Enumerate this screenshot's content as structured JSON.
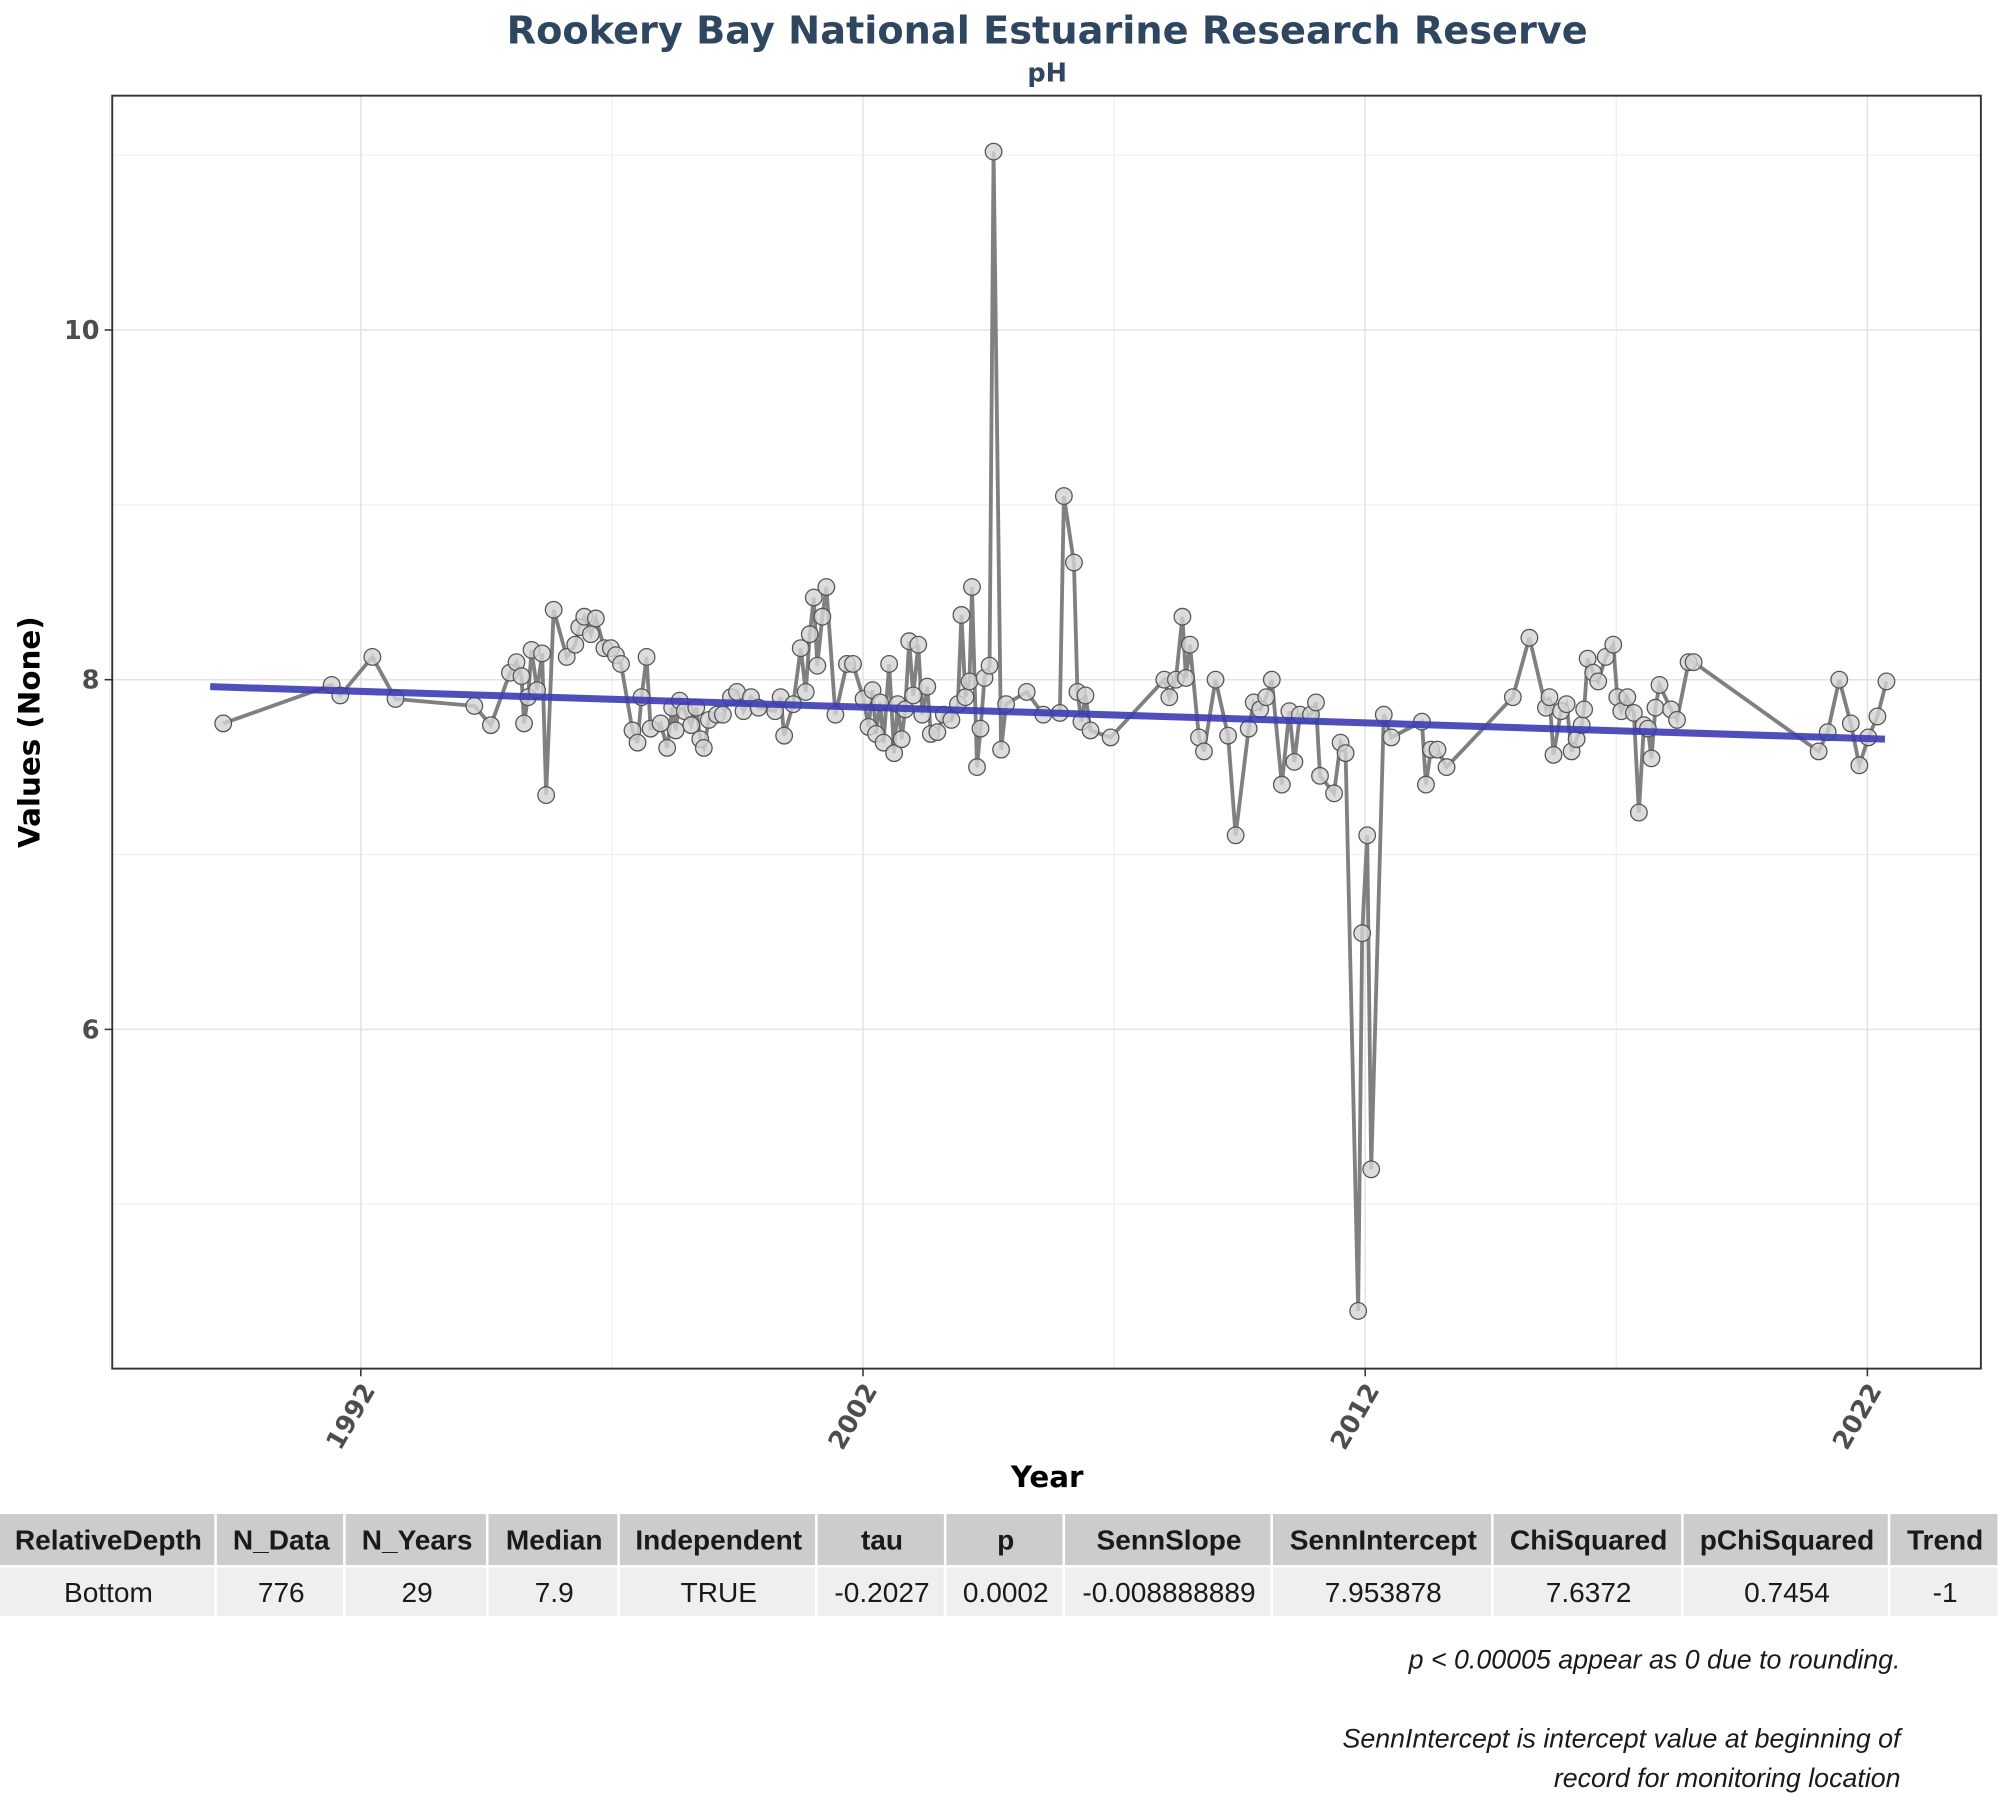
{
  "chart_data": {
    "type": "line",
    "title": "Rookery Bay National Estuarine Research Reserve",
    "subtitle": "pH",
    "x_label": "Year",
    "y_label": "Values (None)",
    "xlim": [
      1987.05,
      2024.26
    ],
    "ylim": [
      4.06,
      11.34
    ],
    "xticks": [
      1992,
      2002,
      2012,
      2022
    ],
    "yticks": [
      6,
      8,
      10
    ],
    "x_minor_ticks": [
      1987,
      1997,
      2007,
      2017
    ],
    "y_minor_ticks": [
      5,
      7,
      9,
      11
    ],
    "grid": true,
    "color": "#808080",
    "x": [
      1989.26,
      1991.42,
      1991.59,
      1992.23,
      1992.69,
      1994.26,
      1994.59,
      1994.97,
      1995.1,
      1995.2,
      1995.25,
      1995.33,
      1995.4,
      1995.51,
      1995.61,
      1995.69,
      1995.84,
      1996.1,
      1996.27,
      1996.35,
      1996.45,
      1996.58,
      1996.68,
      1996.85,
      1996.98,
      1997.08,
      1997.18,
      1997.41,
      1997.51,
      1997.59,
      1997.69,
      1997.77,
      1997.97,
      1998.1,
      1998.2,
      1998.27,
      1998.35,
      1998.45,
      1998.58,
      1998.68,
      1998.76,
      1998.83,
      1998.93,
      1999.09,
      1999.21,
      1999.37,
      1999.49,
      1999.62,
      1999.77,
      1999.92,
      2000.25,
      2000.36,
      2000.43,
      2000.61,
      2000.76,
      2000.86,
      2000.94,
      2001.02,
      2001.09,
      2001.19,
      2001.27,
      2001.45,
      2001.68,
      2001.8,
      2002.01,
      2002.11,
      2002.19,
      2002.26,
      2002.34,
      2002.41,
      2002.52,
      2002.62,
      2002.69,
      2002.77,
      2002.84,
      2002.92,
      2003.0,
      2003.1,
      2003.18,
      2003.28,
      2003.35,
      2003.48,
      2003.61,
      2003.76,
      2003.89,
      2003.96,
      2004.04,
      2004.12,
      2004.17,
      2004.27,
      2004.34,
      2004.42,
      2004.52,
      2004.6,
      2004.75,
      2004.85,
      2005.26,
      2005.59,
      2005.92,
      2006.0,
      2006.2,
      2006.27,
      2006.35,
      2006.43,
      2006.53,
      2006.93,
      2008.0,
      2008.1,
      2008.23,
      2008.36,
      2008.43,
      2008.51,
      2008.69,
      2008.79,
      2009.02,
      2009.27,
      2009.42,
      2009.68,
      2009.78,
      2009.91,
      2010.03,
      2010.14,
      2010.34,
      2010.49,
      2010.59,
      2010.7,
      2010.92,
      2011.02,
      2011.1,
      2011.38,
      2011.51,
      2011.61,
      2011.86,
      2011.94,
      2012.04,
      2012.12,
      2012.37,
      2012.52,
      2013.13,
      2013.21,
      2013.31,
      2013.44,
      2013.62,
      2014.94,
      2015.27,
      2015.6,
      2015.67,
      2015.75,
      2015.9,
      2016.01,
      2016.11,
      2016.21,
      2016.31,
      2016.36,
      2016.43,
      2016.54,
      2016.64,
      2016.79,
      2016.94,
      2017.02,
      2017.1,
      2017.22,
      2017.35,
      2017.45,
      2017.55,
      2017.63,
      2017.7,
      2017.78,
      2017.86,
      2018.09,
      2018.21,
      2018.44,
      2018.54,
      2021.03,
      2021.21,
      2021.44,
      2021.67,
      2021.84,
      2022.02,
      2022.2,
      2022.38
    ],
    "values": [
      7.75,
      7.97,
      7.91,
      8.13,
      7.89,
      7.85,
      7.74,
      8.04,
      8.1,
      8.02,
      7.75,
      7.9,
      8.17,
      7.94,
      8.15,
      7.34,
      8.4,
      8.13,
      8.2,
      8.3,
      8.36,
      8.26,
      8.35,
      8.18,
      8.18,
      8.14,
      8.09,
      7.71,
      7.64,
      7.9,
      8.13,
      7.72,
      7.75,
      7.61,
      7.84,
      7.71,
      7.88,
      7.82,
      7.74,
      7.84,
      7.66,
      7.61,
      7.77,
      7.8,
      7.8,
      7.9,
      7.93,
      7.82,
      7.9,
      7.84,
      7.82,
      7.9,
      7.68,
      7.86,
      8.18,
      7.93,
      8.26,
      8.47,
      8.08,
      8.36,
      8.53,
      7.8,
      8.09,
      8.09,
      7.89,
      7.73,
      7.94,
      7.69,
      7.87,
      7.64,
      8.09,
      7.58,
      7.86,
      7.66,
      7.83,
      8.22,
      7.91,
      8.2,
      7.8,
      7.96,
      7.69,
      7.7,
      7.8,
      7.77,
      7.86,
      8.37,
      7.9,
      7.99,
      8.53,
      7.5,
      7.72,
      8.01,
      8.08,
      11.02,
      7.6,
      7.86,
      7.93,
      7.8,
      7.81,
      9.05,
      8.67,
      7.93,
      7.76,
      7.91,
      7.71,
      7.67,
      8.0,
      7.9,
      8.0,
      8.36,
      8.01,
      8.2,
      7.67,
      7.59,
      8.0,
      7.68,
      7.11,
      7.72,
      7.87,
      7.83,
      7.9,
      8.0,
      7.4,
      7.82,
      7.53,
      7.8,
      7.8,
      7.87,
      7.45,
      7.35,
      7.64,
      7.58,
      4.39,
      6.55,
      7.11,
      5.2,
      7.8,
      7.67,
      7.76,
      7.4,
      7.6,
      7.6,
      7.5,
      7.9,
      8.24,
      7.84,
      7.9,
      7.57,
      7.82,
      7.86,
      7.59,
      7.66,
      7.74,
      7.83,
      8.12,
      8.04,
      7.99,
      8.13,
      8.2,
      7.9,
      7.82,
      7.9,
      7.81,
      7.24,
      7.74,
      7.72,
      7.55,
      7.84,
      7.97,
      7.83,
      7.77,
      8.1,
      8.1,
      7.59,
      7.7,
      8.0,
      7.75,
      7.51,
      7.67,
      7.79,
      7.99
    ],
    "trend": {
      "color": "#3c3cb4",
      "x": [
        1989.0,
        2022.35
      ],
      "values": [
        7.96,
        7.66
      ]
    }
  },
  "table": {
    "headers": [
      "RelativeDepth",
      "N_Data",
      "N_Years",
      "Median",
      "Independent",
      "tau",
      "p",
      "SennSlope",
      "SennIntercept",
      "ChiSquared",
      "pChiSquared",
      "Trend"
    ],
    "rows": [
      [
        "Bottom",
        "776",
        "29",
        "7.9",
        "TRUE",
        "-0.2027",
        "0.0002",
        "-0.008888889",
        "7.953878",
        "7.6372",
        "0.7454",
        "-1"
      ]
    ]
  },
  "notes": [
    [
      "p < 0.00005 appear as 0 due to rounding."
    ],
    [
      "SennIntercept is intercept value at beginning of",
      "record for monitoring location"
    ]
  ]
}
